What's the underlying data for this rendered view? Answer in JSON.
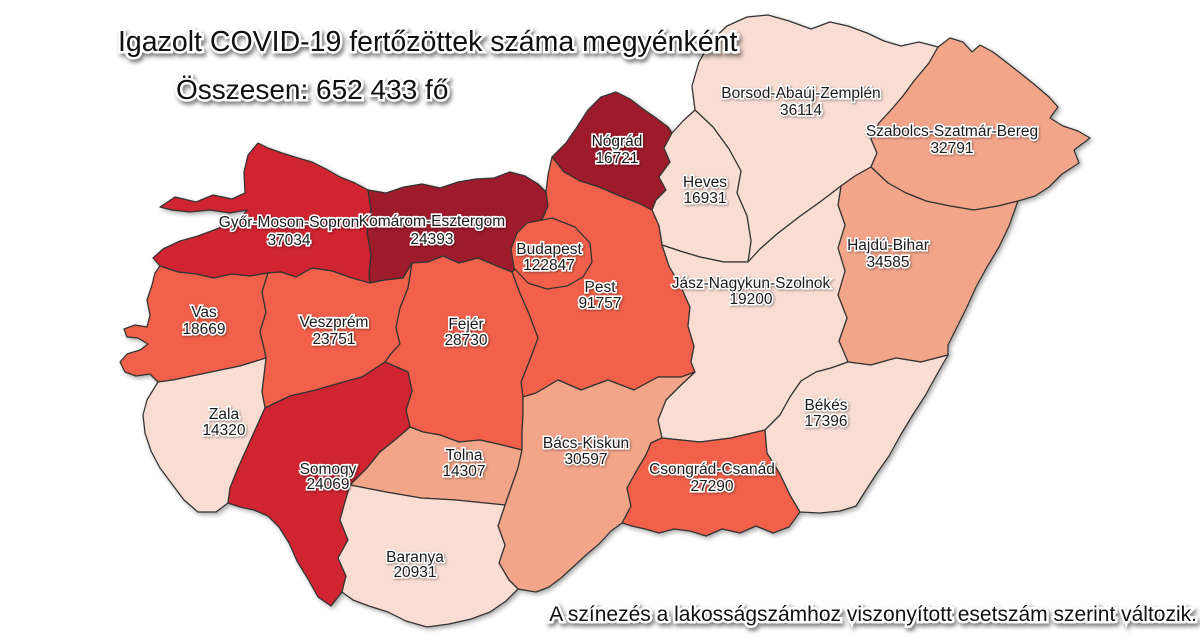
{
  "header": {
    "title": "Igazolt COVID-19 fertőzöttek száma megyénként",
    "total": "Összesen: 652 433 fő"
  },
  "footer": {
    "note": "A színezés a lakosságszámhoz viszonyított esetszám szerint változik."
  },
  "map": {
    "border_color": "#333333",
    "palette": {
      "level1": "#f9ddd2",
      "level2": "#f3a58a",
      "level3": "#f1604a",
      "level4": "#d02431",
      "level5": "#9d1b2a"
    },
    "counties": [
      {
        "id": "gyms",
        "name": "Győr-Moson-Sopron",
        "value": "37034",
        "level": "level4"
      },
      {
        "id": "ke",
        "name": "Komárom-Esztergom",
        "value": "24393",
        "level": "level5"
      },
      {
        "id": "nograd",
        "name": "Nógrád",
        "value": "16721",
        "level": "level5"
      },
      {
        "id": "borsod",
        "name": "Borsod-Abaúj-Zemplén",
        "value": "36114",
        "level": "level1"
      },
      {
        "id": "szabolcs",
        "name": "Szabolcs-Szatmár-Bereg",
        "value": "32791",
        "level": "level2"
      },
      {
        "id": "heves",
        "name": "Heves",
        "value": "16931",
        "level": "level1"
      },
      {
        "id": "hajdu",
        "name": "Hajdú-Bihar",
        "value": "34585",
        "level": "level2"
      },
      {
        "id": "pest",
        "name": "Pest",
        "value": "91757",
        "level": "level3"
      },
      {
        "id": "budapest",
        "name": "Budapest",
        "value": "122847",
        "level": "level3"
      },
      {
        "id": "jnsz",
        "name": "Jász-Nagykun-Szolnok",
        "value": "19200",
        "level": "level1"
      },
      {
        "id": "vas",
        "name": "Vas",
        "value": "18669",
        "level": "level3"
      },
      {
        "id": "veszprem",
        "name": "Veszprém",
        "value": "23751",
        "level": "level3"
      },
      {
        "id": "fejer",
        "name": "Fejér",
        "value": "28730",
        "level": "level3"
      },
      {
        "id": "zala",
        "name": "Zala",
        "value": "14320",
        "level": "level1"
      },
      {
        "id": "somogy",
        "name": "Somogy",
        "value": "24069",
        "level": "level4"
      },
      {
        "id": "tolna",
        "name": "Tolna",
        "value": "14307",
        "level": "level2"
      },
      {
        "id": "bacs",
        "name": "Bács-Kiskun",
        "value": "30597",
        "level": "level2"
      },
      {
        "id": "csongrad",
        "name": "Csongrád-Csanád",
        "value": "27290",
        "level": "level3"
      },
      {
        "id": "bekes",
        "name": "Békés",
        "value": "17396",
        "level": "level1"
      },
      {
        "id": "baranya",
        "name": "Baranya",
        "value": "20931",
        "level": "level1"
      }
    ]
  }
}
